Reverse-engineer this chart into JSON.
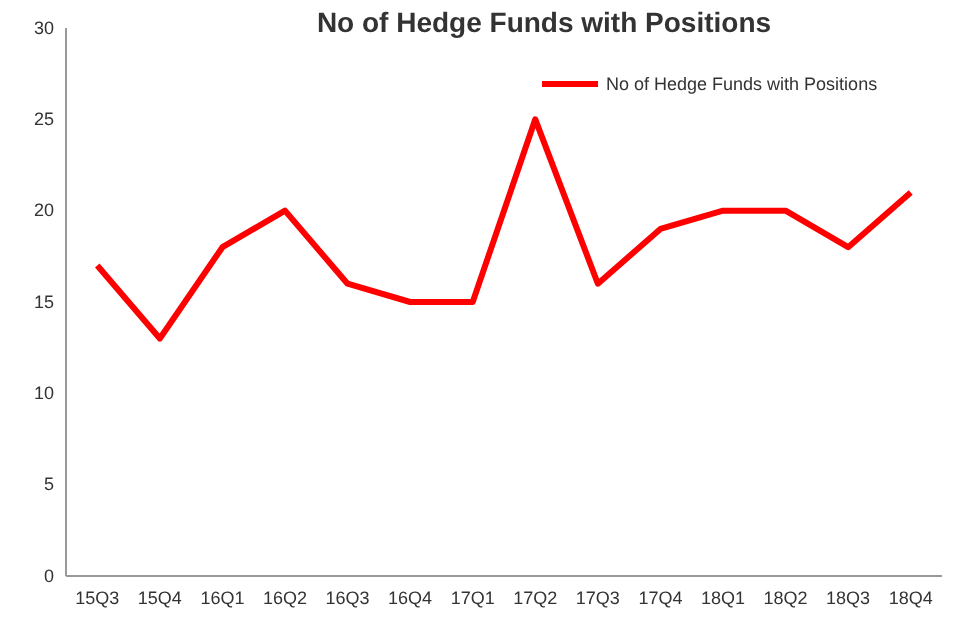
{
  "chart_data": {
    "type": "line",
    "title": "No of Hedge Funds with Positions",
    "categories": [
      "15Q3",
      "15Q4",
      "16Q1",
      "16Q2",
      "16Q3",
      "16Q4",
      "17Q1",
      "17Q2",
      "17Q3",
      "17Q4",
      "18Q1",
      "18Q2",
      "18Q3",
      "18Q4"
    ],
    "series": [
      {
        "name": "No of Hedge Funds with Positions",
        "color": "#ff0000",
        "values": [
          17,
          13,
          18,
          20,
          16,
          15,
          15,
          25,
          16,
          19,
          20,
          20,
          18,
          21
        ]
      }
    ],
    "ylim": [
      0,
      30
    ],
    "yticks": [
      0,
      5,
      10,
      15,
      20,
      25,
      30
    ],
    "legend": "top right",
    "grid": false,
    "marker": "none",
    "line_style": "solid"
  }
}
